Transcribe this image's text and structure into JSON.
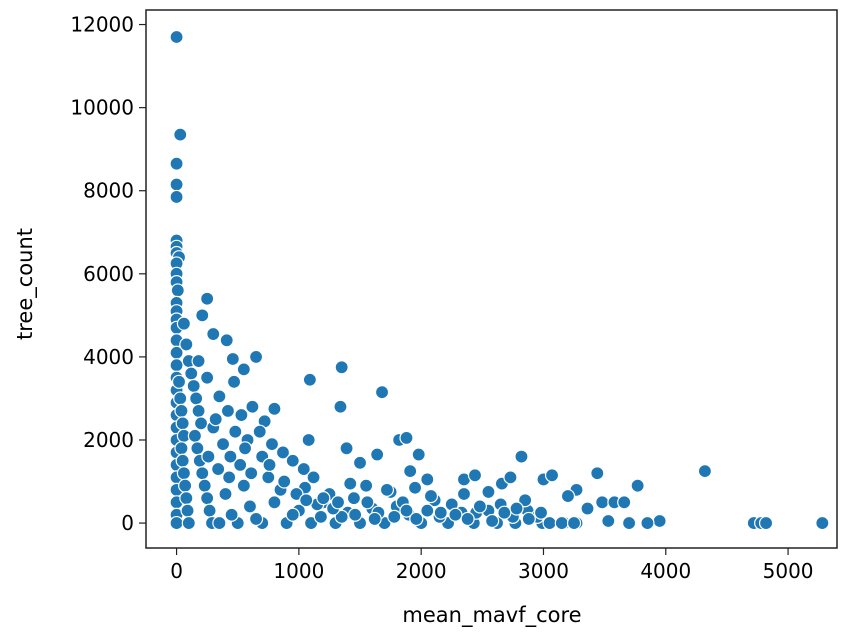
{
  "chart_data": {
    "type": "scatter",
    "xlabel": "mean_mavf_core",
    "ylabel": "tree_count",
    "xlim": [
      -250,
      5400
    ],
    "ylim": [
      -600,
      12350
    ],
    "x_ticks": [
      0,
      1000,
      2000,
      3000,
      4000,
      5000
    ],
    "y_ticks": [
      0,
      2000,
      4000,
      6000,
      8000,
      10000,
      12000
    ],
    "x_tick_labels": [
      "0",
      "1000",
      "2000",
      "3000",
      "4000",
      "5000"
    ],
    "y_tick_labels": [
      "0",
      "2000",
      "4000",
      "6000",
      "8000",
      "10000",
      "12000"
    ],
    "marker_color": "#1f77b4",
    "marker_edge": "#ffffff",
    "grid": false,
    "points": [
      [
        0,
        11700
      ],
      [
        30,
        9350
      ],
      [
        0,
        8650
      ],
      [
        0,
        8150
      ],
      [
        0,
        7850
      ],
      [
        0,
        6800
      ],
      [
        0,
        6650
      ],
      [
        0,
        6500
      ],
      [
        20,
        6400
      ],
      [
        0,
        6250
      ],
      [
        0,
        6000
      ],
      [
        0,
        5800
      ],
      [
        10,
        5600
      ],
      [
        0,
        5300
      ],
      [
        0,
        5100
      ],
      [
        0,
        4900
      ],
      [
        0,
        4700
      ],
      [
        0,
        4400
      ],
      [
        0,
        4100
      ],
      [
        0,
        3800
      ],
      [
        0,
        3500
      ],
      [
        0,
        3200
      ],
      [
        0,
        2900
      ],
      [
        0,
        2600
      ],
      [
        0,
        2300
      ],
      [
        0,
        2000
      ],
      [
        0,
        1700
      ],
      [
        0,
        1400
      ],
      [
        0,
        1100
      ],
      [
        0,
        800
      ],
      [
        0,
        500
      ],
      [
        0,
        200
      ],
      [
        0,
        0
      ],
      [
        20,
        3400
      ],
      [
        30,
        3000
      ],
      [
        40,
        2700
      ],
      [
        50,
        2400
      ],
      [
        60,
        2100
      ],
      [
        40,
        1800
      ],
      [
        50,
        1500
      ],
      [
        60,
        1200
      ],
      [
        70,
        900
      ],
      [
        80,
        600
      ],
      [
        90,
        300
      ],
      [
        100,
        0
      ],
      [
        60,
        4800
      ],
      [
        80,
        4300
      ],
      [
        100,
        3900
      ],
      [
        120,
        3600
      ],
      [
        140,
        3300
      ],
      [
        160,
        3000
      ],
      [
        180,
        2700
      ],
      [
        200,
        2400
      ],
      [
        150,
        2100
      ],
      [
        170,
        1800
      ],
      [
        190,
        1500
      ],
      [
        210,
        1200
      ],
      [
        230,
        900
      ],
      [
        250,
        600
      ],
      [
        270,
        300
      ],
      [
        290,
        0
      ],
      [
        250,
        5400
      ],
      [
        210,
        5000
      ],
      [
        300,
        4550
      ],
      [
        410,
        4400
      ],
      [
        460,
        3950
      ],
      [
        470,
        3400
      ],
      [
        250,
        3500
      ],
      [
        550,
        3700
      ],
      [
        650,
        4000
      ],
      [
        350,
        3050
      ],
      [
        420,
        2700
      ],
      [
        530,
        2600
      ],
      [
        620,
        2800
      ],
      [
        800,
        2750
      ],
      [
        720,
        2450
      ],
      [
        580,
        2000
      ],
      [
        480,
        2200
      ],
      [
        380,
        1900
      ],
      [
        300,
        2300
      ],
      [
        260,
        1600
      ],
      [
        340,
        1300
      ],
      [
        430,
        1100
      ],
      [
        520,
        1400
      ],
      [
        610,
        1200
      ],
      [
        700,
        1600
      ],
      [
        780,
        1900
      ],
      [
        870,
        1700
      ],
      [
        950,
        1500
      ],
      [
        1040,
        1300
      ],
      [
        1080,
        2000
      ],
      [
        1090,
        3450
      ],
      [
        1350,
        3750
      ],
      [
        1340,
        2800
      ],
      [
        1390,
        1800
      ],
      [
        1500,
        1450
      ],
      [
        1640,
        1650
      ],
      [
        1680,
        3150
      ],
      [
        1820,
        2000
      ],
      [
        1880,
        2050
      ],
      [
        1910,
        1250
      ],
      [
        1980,
        1650
      ],
      [
        2050,
        1050
      ],
      [
        2350,
        1050
      ],
      [
        2440,
        1150
      ],
      [
        2660,
        950
      ],
      [
        2730,
        1100
      ],
      [
        2820,
        1600
      ],
      [
        3000,
        1050
      ],
      [
        3070,
        1150
      ],
      [
        3440,
        1200
      ],
      [
        3770,
        900
      ],
      [
        4320,
        1250
      ],
      [
        3360,
        350
      ],
      [
        3480,
        500
      ],
      [
        3580,
        500
      ],
      [
        3660,
        500
      ],
      [
        3950,
        50
      ],
      [
        3850,
        0
      ],
      [
        3700,
        0
      ],
      [
        3530,
        50
      ],
      [
        3270,
        800
      ],
      [
        3200,
        650
      ],
      [
        3170,
        0
      ],
      [
        3270,
        0
      ],
      [
        2990,
        0
      ],
      [
        2870,
        300
      ],
      [
        2770,
        0
      ],
      [
        2620,
        0
      ],
      [
        2550,
        300
      ],
      [
        2430,
        0
      ],
      [
        2330,
        250
      ],
      [
        2220,
        0
      ],
      [
        2110,
        550
      ],
      [
        2000,
        0
      ],
      [
        1900,
        200
      ],
      [
        1800,
        400
      ],
      [
        1700,
        0
      ],
      [
        1600,
        350
      ],
      [
        1500,
        0
      ],
      [
        1400,
        250
      ],
      [
        1300,
        0
      ],
      [
        1200,
        500
      ],
      [
        1100,
        0
      ],
      [
        1000,
        300
      ],
      [
        900,
        0
      ],
      [
        800,
        500
      ],
      [
        700,
        0
      ],
      [
        600,
        400
      ],
      [
        500,
        0
      ],
      [
        400,
        700
      ],
      [
        350,
        0
      ],
      [
        450,
        200
      ],
      [
        550,
        900
      ],
      [
        650,
        100
      ],
      [
        750,
        1100
      ],
      [
        850,
        800
      ],
      [
        950,
        200
      ],
      [
        1050,
        850
      ],
      [
        1150,
        450
      ],
      [
        1250,
        700
      ],
      [
        1350,
        150
      ],
      [
        1450,
        600
      ],
      [
        1550,
        900
      ],
      [
        1650,
        250
      ],
      [
        1750,
        750
      ],
      [
        1850,
        500
      ],
      [
        1950,
        850
      ],
      [
        2050,
        300
      ],
      [
        2150,
        150
      ],
      [
        2250,
        450
      ],
      [
        2350,
        700
      ],
      [
        2450,
        250
      ],
      [
        2550,
        750
      ],
      [
        2650,
        450
      ],
      [
        2750,
        150
      ],
      [
        2850,
        550
      ],
      [
        2950,
        150
      ],
      [
        3050,
        0
      ],
      [
        3150,
        0
      ],
      [
        3250,
        0
      ],
      [
        4720,
        0
      ],
      [
        4780,
        0
      ],
      [
        4820,
        0
      ],
      [
        5280,
        0
      ],
      [
        1120,
        1100
      ],
      [
        1200,
        600
      ],
      [
        1280,
        350
      ],
      [
        1420,
        950
      ],
      [
        1560,
        500
      ],
      [
        1720,
        800
      ],
      [
        1880,
        300
      ],
      [
        2080,
        650
      ],
      [
        2280,
        200
      ],
      [
        2480,
        400
      ],
      [
        2680,
        250
      ],
      [
        2880,
        100
      ],
      [
        180,
        3900
      ],
      [
        320,
        2500
      ],
      [
        440,
        1600
      ],
      [
        560,
        1800
      ],
      [
        680,
        2200
      ],
      [
        760,
        1400
      ],
      [
        880,
        1000
      ],
      [
        980,
        700
      ],
      [
        1060,
        550
      ],
      [
        1180,
        150
      ],
      [
        1320,
        500
      ],
      [
        1460,
        200
      ],
      [
        1620,
        100
      ],
      [
        1780,
        150
      ],
      [
        1960,
        100
      ],
      [
        2160,
        250
      ],
      [
        2380,
        100
      ],
      [
        2580,
        50
      ],
      [
        2780,
        350
      ],
      [
        2980,
        250
      ]
    ]
  }
}
